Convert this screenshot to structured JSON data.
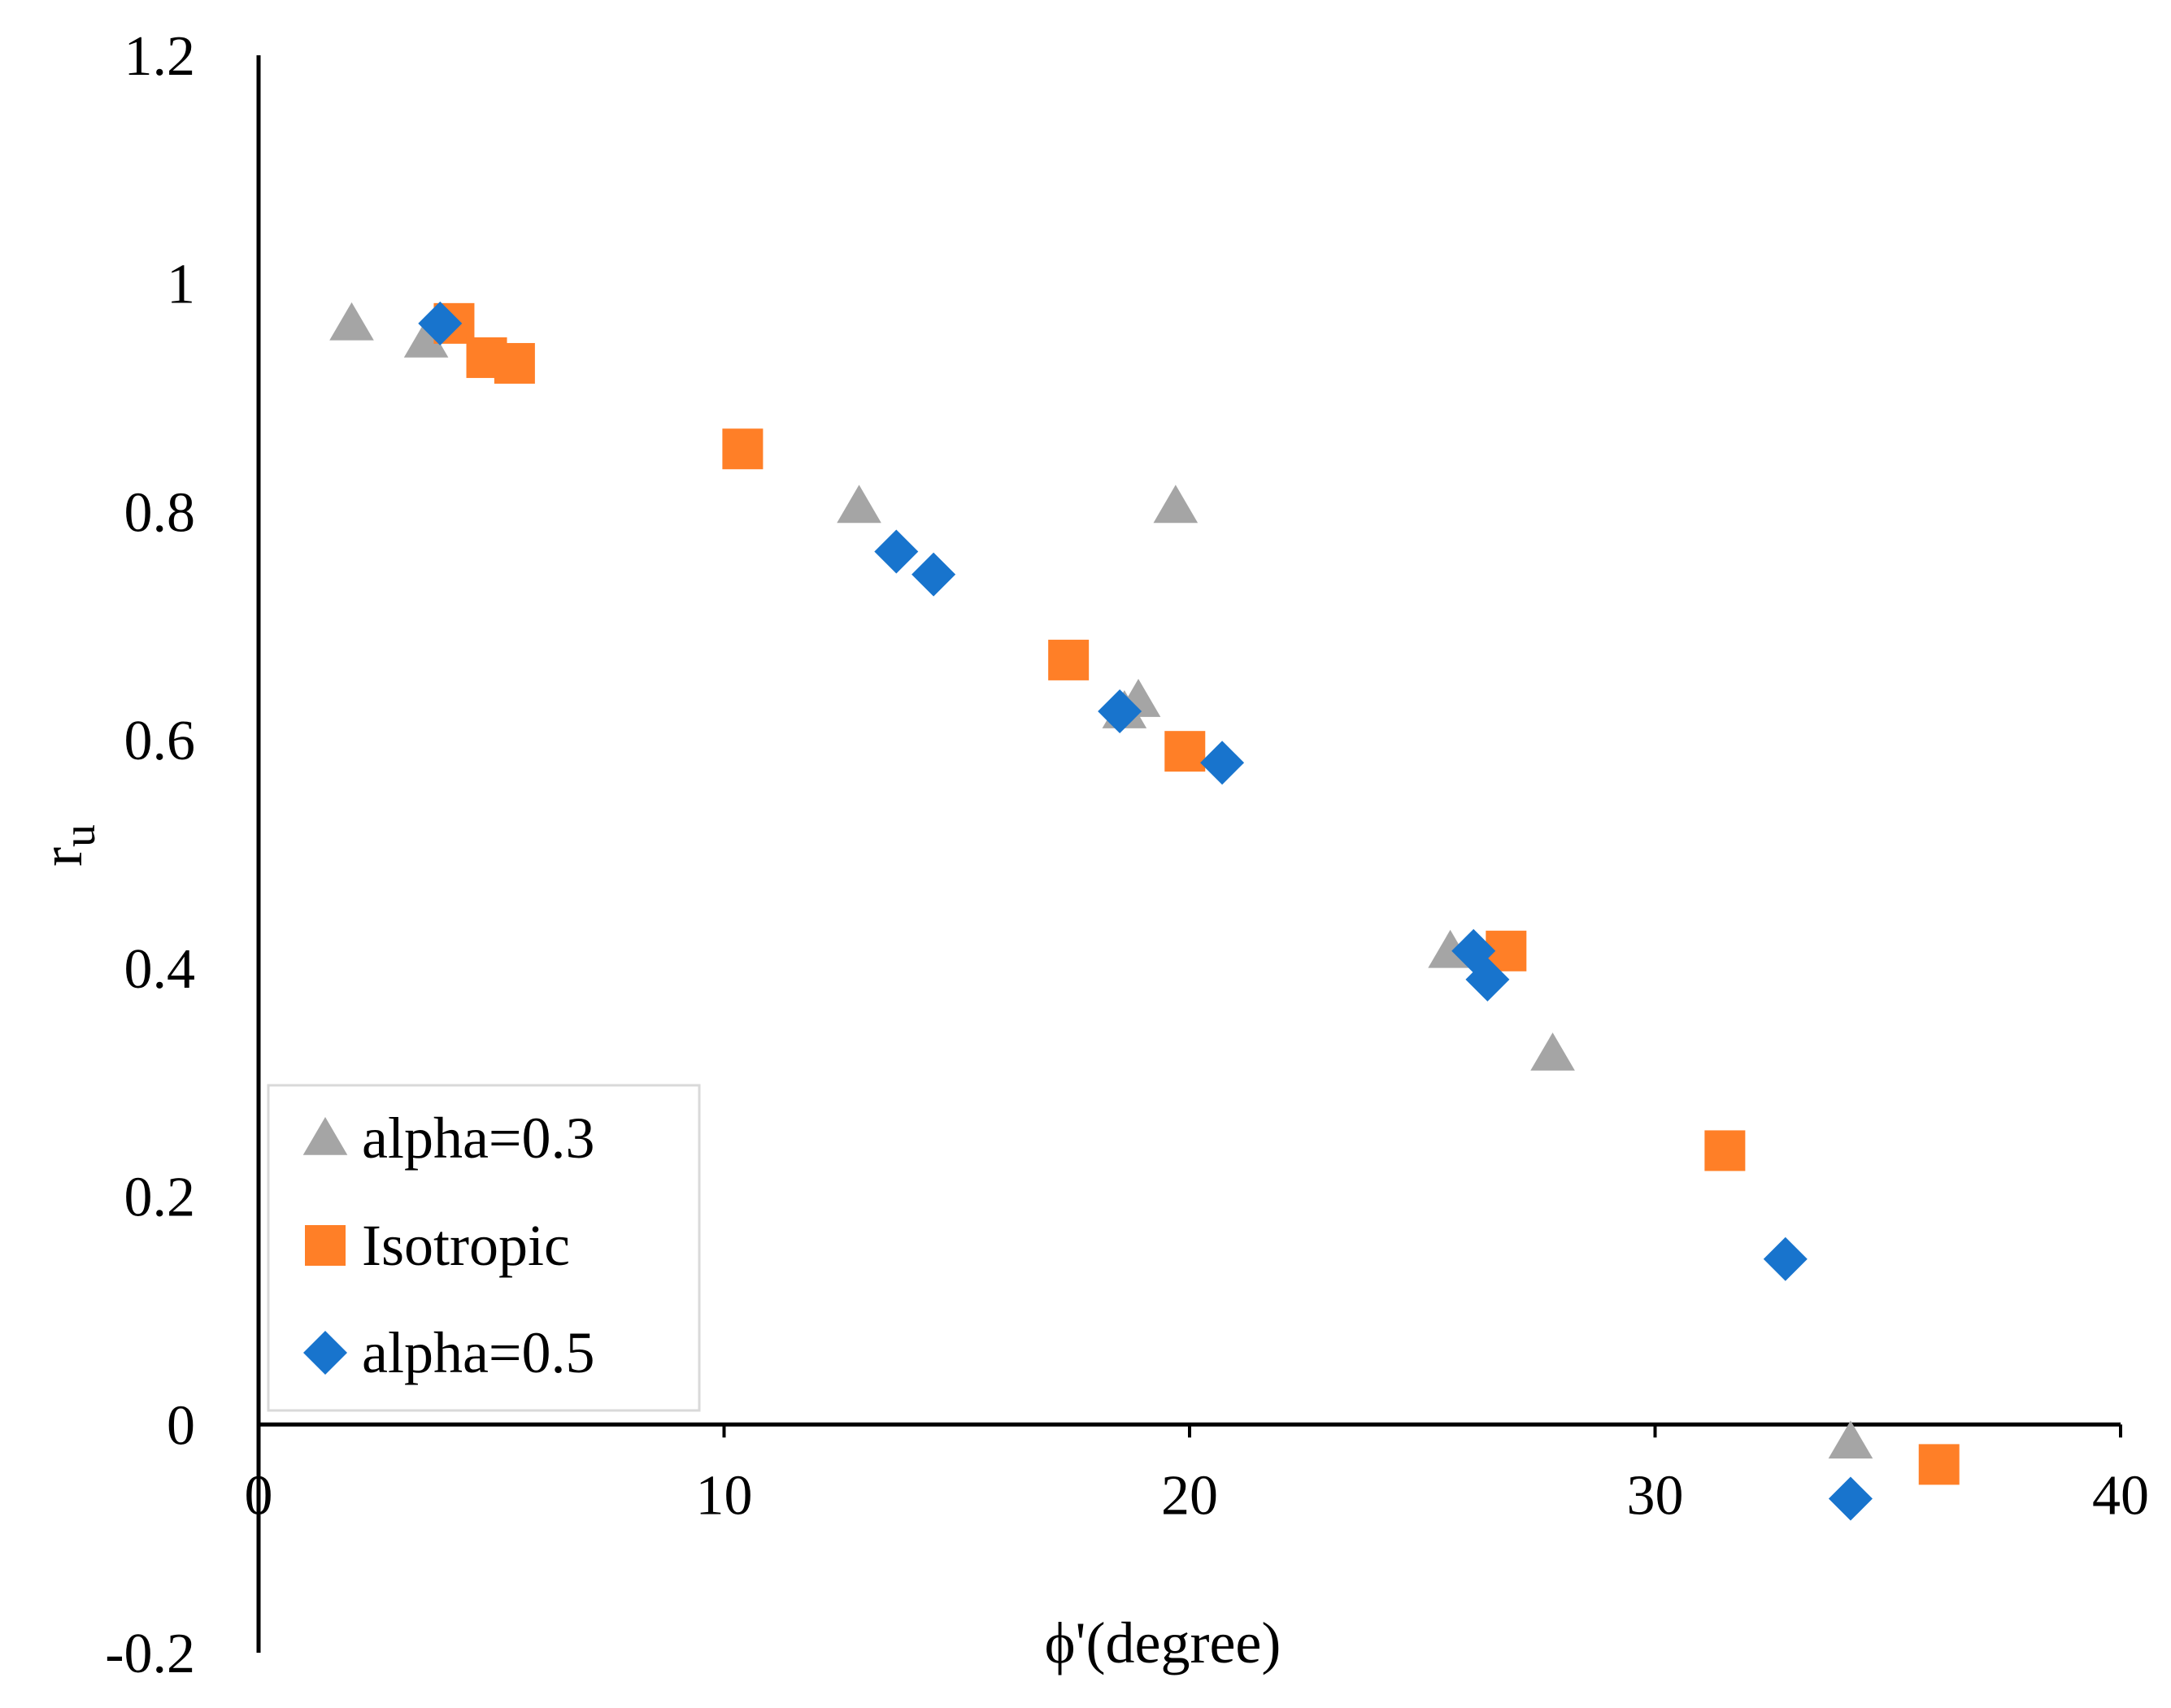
{
  "chart_data": {
    "type": "scatter",
    "title": "",
    "xlabel": "ϕ'(degree)",
    "ylabel": "r",
    "ylabel_subscript": "u",
    "xlim": [
      0,
      40
    ],
    "ylim": [
      -0.2,
      1.2
    ],
    "x_ticks": [
      0,
      10,
      20,
      30,
      40
    ],
    "x_tick_labels": [
      "0",
      "10",
      "20",
      "30",
      "40"
    ],
    "y_ticks": [
      -0.2,
      0,
      0.2,
      0.4,
      0.6,
      0.8,
      1,
      1.2
    ],
    "y_tick_labels": [
      "-0.2",
      "0",
      "0.2",
      "0.4",
      "0.6",
      "0.8",
      "1",
      "1.2"
    ],
    "grid": false,
    "legend_position": "bottom-left",
    "series": [
      {
        "name": "alpha=0.3",
        "marker": "triangle",
        "color": "#a5a5a5",
        "points": [
          {
            "x": 2.0,
            "y": 0.965
          },
          {
            "x": 3.6,
            "y": 0.95
          },
          {
            "x": 12.9,
            "y": 0.805
          },
          {
            "x": 18.6,
            "y": 0.625
          },
          {
            "x": 18.9,
            "y": 0.635
          },
          {
            "x": 19.7,
            "y": 0.805
          },
          {
            "x": 25.6,
            "y": 0.415
          },
          {
            "x": 27.8,
            "y": 0.325
          },
          {
            "x": 34.2,
            "y": -0.015
          }
        ]
      },
      {
        "name": "Isotropic",
        "marker": "square",
        "color": "#ff7f27",
        "points": [
          {
            "x": 4.2,
            "y": 0.965
          },
          {
            "x": 4.9,
            "y": 0.935
          },
          {
            "x": 5.5,
            "y": 0.93
          },
          {
            "x": 10.4,
            "y": 0.855
          },
          {
            "x": 17.4,
            "y": 0.67
          },
          {
            "x": 19.9,
            "y": 0.59
          },
          {
            "x": 26.8,
            "y": 0.415
          },
          {
            "x": 31.5,
            "y": 0.24
          },
          {
            "x": 36.1,
            "y": -0.035
          }
        ]
      },
      {
        "name": "alpha=0.5",
        "marker": "diamond",
        "color": "#1874cd",
        "points": [
          {
            "x": 3.9,
            "y": 0.965
          },
          {
            "x": 13.7,
            "y": 0.765
          },
          {
            "x": 14.5,
            "y": 0.745
          },
          {
            "x": 18.5,
            "y": 0.625
          },
          {
            "x": 20.7,
            "y": 0.58
          },
          {
            "x": 26.1,
            "y": 0.415
          },
          {
            "x": 26.4,
            "y": 0.39
          },
          {
            "x": 32.8,
            "y": 0.145
          },
          {
            "x": 34.2,
            "y": -0.065
          }
        ]
      }
    ]
  }
}
